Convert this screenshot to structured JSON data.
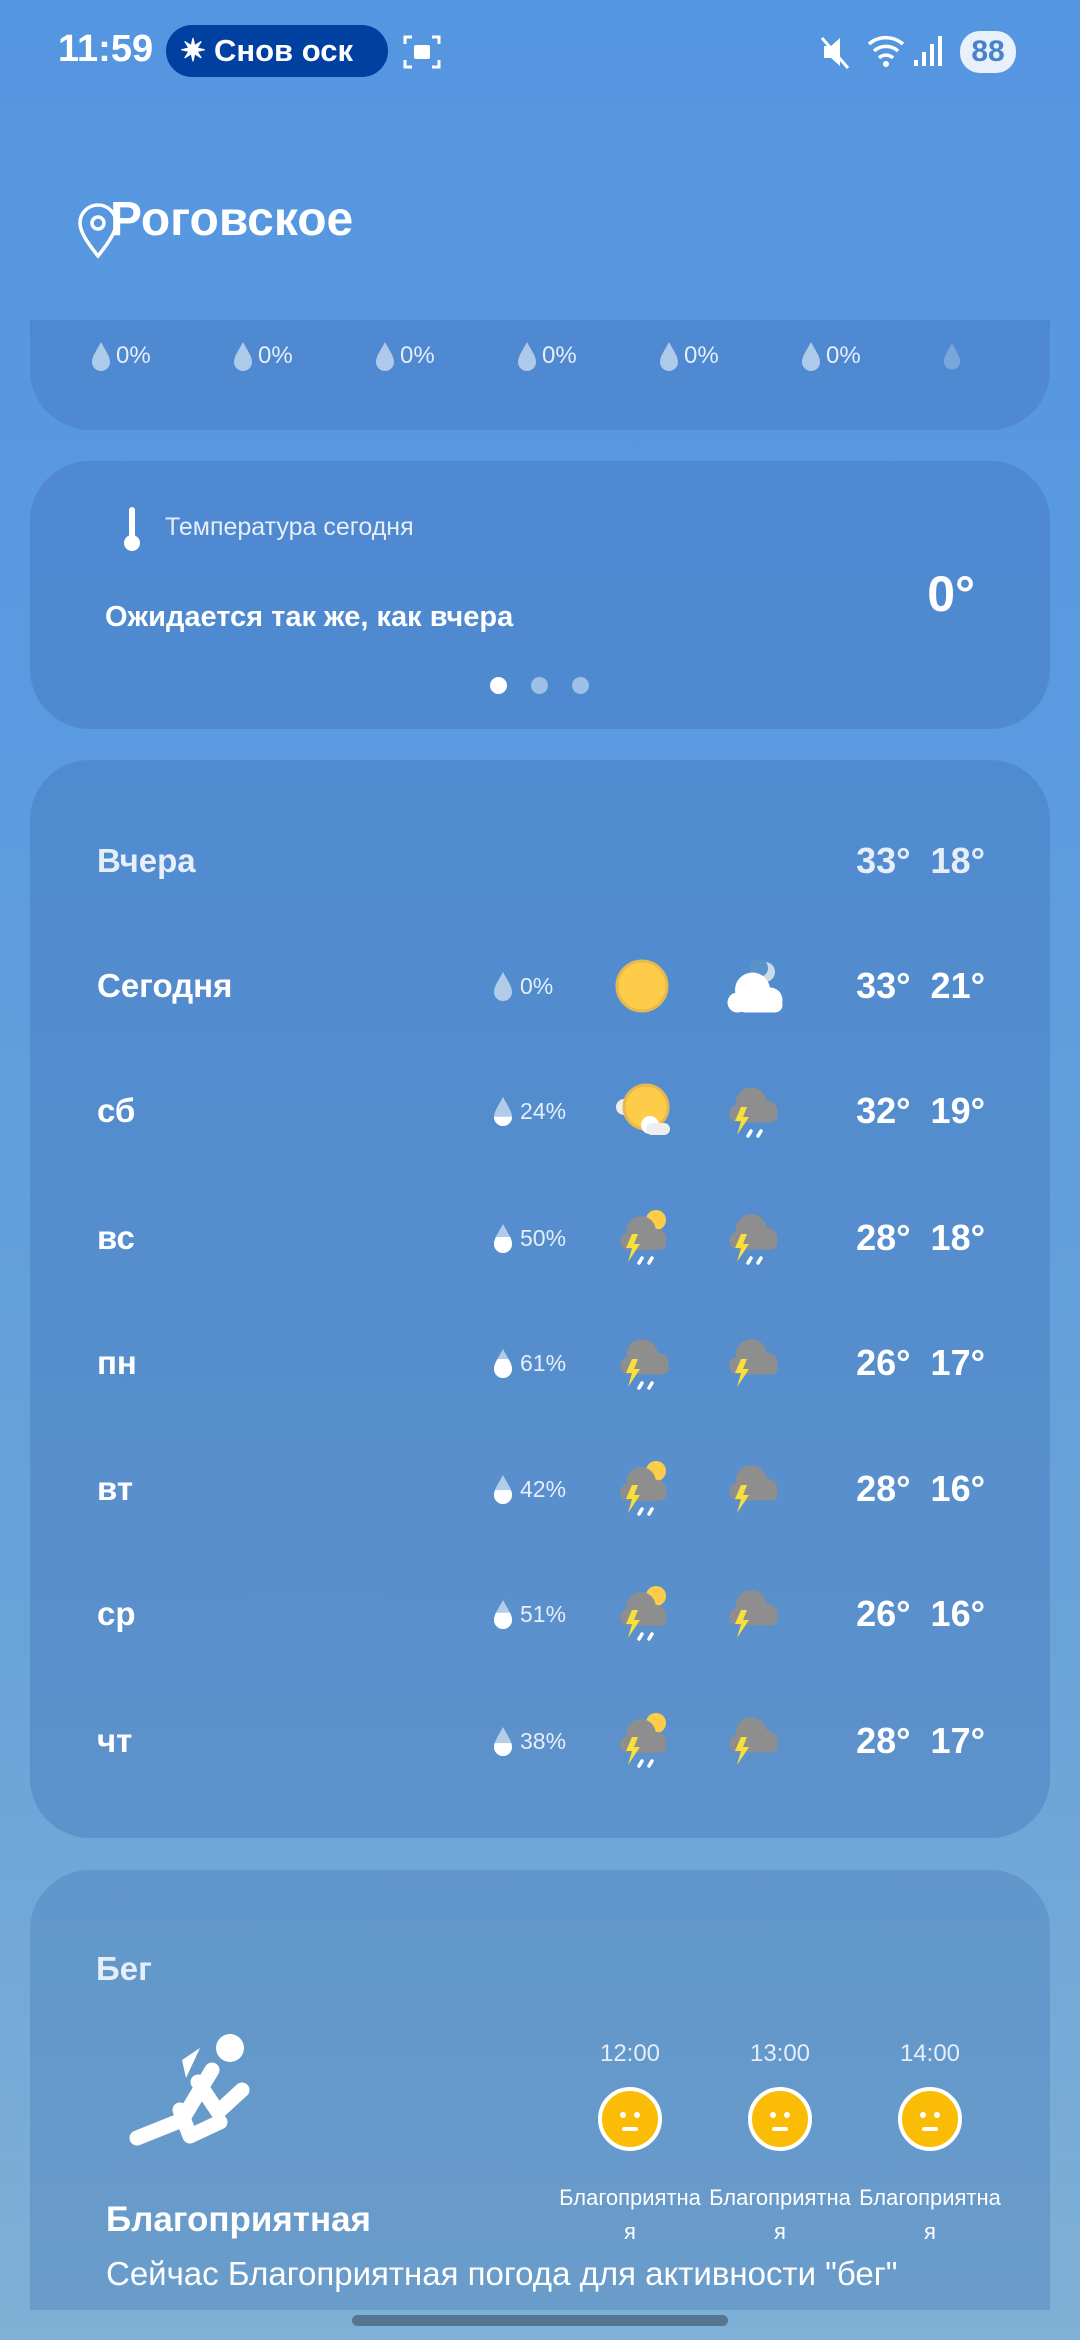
{
  "status": {
    "time": "11:59",
    "pill_text": "Снов оск",
    "battery": "88"
  },
  "location": {
    "name": "Роговское"
  },
  "hourly_precip": [
    "0%",
    "0%",
    "0%",
    "0%",
    "0%",
    "0%"
  ],
  "temp_card": {
    "label": "Температура сегодня",
    "message": "Ожидается так же, как вчера",
    "value": "0°",
    "page_dots": 3,
    "active_dot": 1
  },
  "forecast": [
    {
      "day": "Вчера",
      "precip": null,
      "icon_day": null,
      "icon_night": null,
      "high": "33°",
      "low": "18°"
    },
    {
      "day": "Сегодня",
      "precip": "0%",
      "precip_fill": 0,
      "icon_day": "sun-icon",
      "icon_night": "cloud-moon-icon",
      "high": "33°",
      "low": "21°"
    },
    {
      "day": "сб",
      "precip": "24%",
      "precip_fill": 0.24,
      "icon_day": "sun-cloud-icon",
      "icon_night": "thunderstorm-rain-icon",
      "high": "32°",
      "low": "19°"
    },
    {
      "day": "вс",
      "precip": "50%",
      "precip_fill": 0.5,
      "icon_day": "sun-thunderstorm-icon",
      "icon_night": "thunderstorm-rain-icon",
      "high": "28°",
      "low": "18°"
    },
    {
      "day": "пн",
      "precip": "61%",
      "precip_fill": 0.61,
      "icon_day": "thunderstorm-rain-icon",
      "icon_night": "thunderstorm-icon",
      "high": "26°",
      "low": "17°"
    },
    {
      "day": "вт",
      "precip": "42%",
      "precip_fill": 0.42,
      "icon_day": "sun-thunderstorm-icon",
      "icon_night": "thunderstorm-icon",
      "high": "28°",
      "low": "16°"
    },
    {
      "day": "ср",
      "precip": "51%",
      "precip_fill": 0.51,
      "icon_day": "sun-thunderstorm-icon",
      "icon_night": "thunderstorm-icon",
      "high": "26°",
      "low": "16°"
    },
    {
      "day": "чт",
      "precip": "38%",
      "precip_fill": 0.38,
      "icon_day": "sun-thunderstorm-icon",
      "icon_night": "thunderstorm-icon",
      "high": "28°",
      "low": "17°"
    }
  ],
  "activity": {
    "title": "Бег",
    "rating": "Благоприятная",
    "description": "Сейчас Благоприятная погода для активности \"бег\"",
    "hours": [
      {
        "time": "12:00",
        "label": "Благоприятная"
      },
      {
        "time": "13:00",
        "label": "Благоприятная"
      },
      {
        "time": "14:00",
        "label": "Благоприятная"
      }
    ]
  },
  "colors": {
    "sun": "#fdcd4a",
    "face": "#fbbc05",
    "cloud_dark": "#8a8a8a",
    "bolt": "#f7e03c"
  }
}
